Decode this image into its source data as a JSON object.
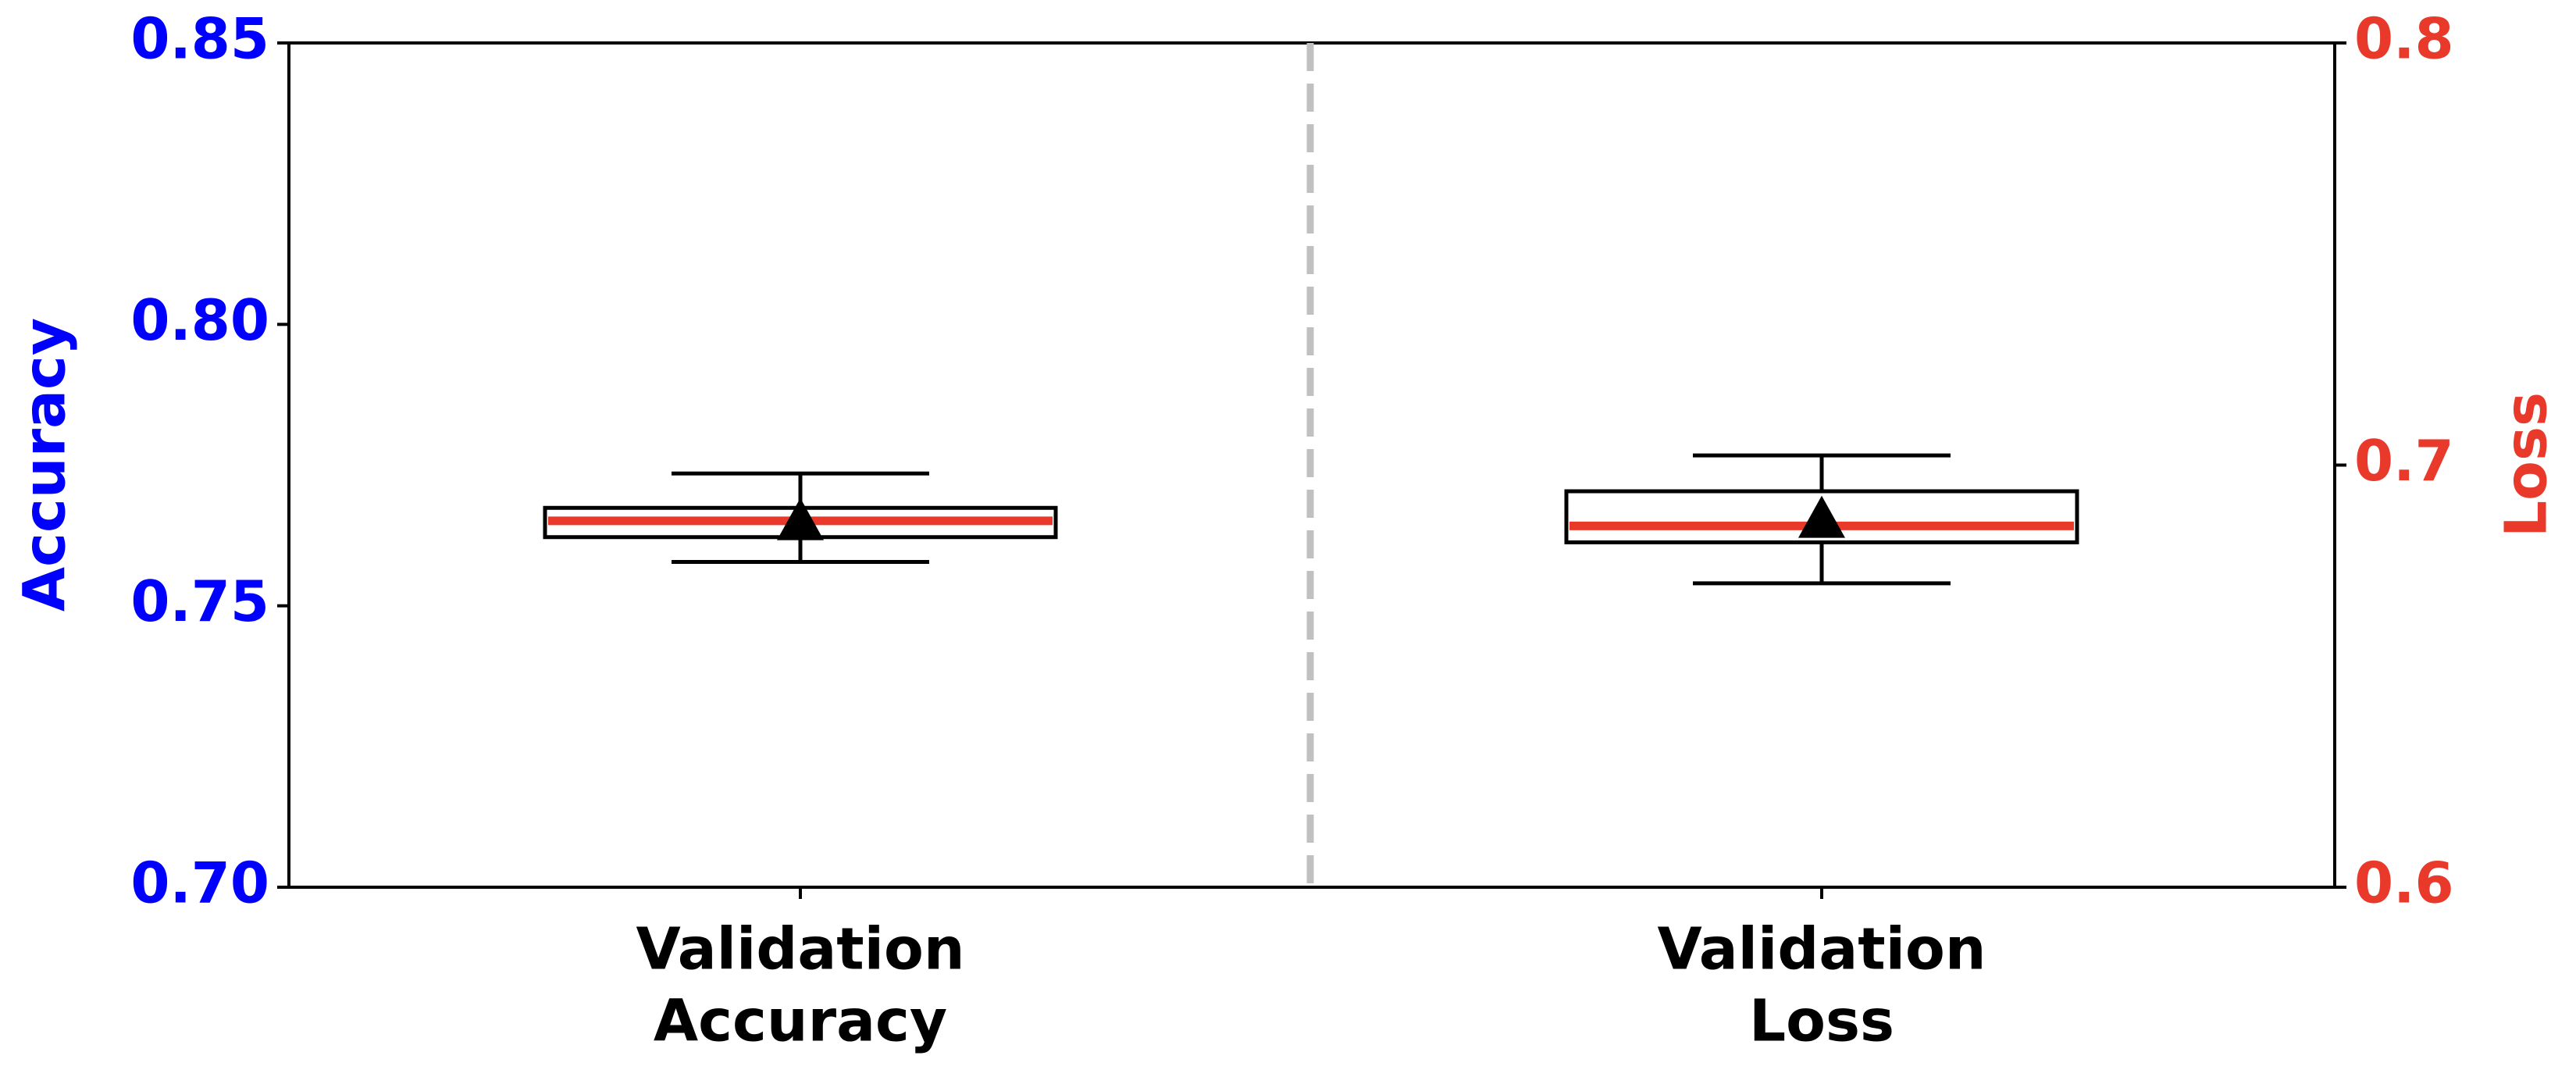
{
  "chart_data": {
    "type": "box",
    "categories": [
      [
        "Validation",
        "Accuracy"
      ],
      [
        "Validation",
        "Loss"
      ]
    ],
    "y_label": "Accuracy",
    "y2_label": "Loss",
    "y_color": "#0000ff",
    "y2_color": "#e8392a",
    "median_color": "#e8392a",
    "box_color": "#000000",
    "mean_color": "#000000",
    "ylim": [
      0.7,
      0.85
    ],
    "yticks": [
      {
        "value": 0.7,
        "label": "0.70"
      },
      0.75,
      {
        "value": 0.8,
        "label": "0.80"
      },
      0.85
    ],
    "y2lim": [
      0.6,
      0.8
    ],
    "y2ticks": [
      0.6,
      0.7,
      0.8
    ],
    "series": [
      {
        "whislo": 0.7578,
        "q1": 0.7622,
        "med": 0.7651,
        "q3": 0.7674,
        "whishi": 0.7735,
        "mean": 0.765
      },
      {
        "whislo": 0.672,
        "q1": 0.6817,
        "med": 0.6856,
        "q3": 0.6938,
        "whishi": 0.7023,
        "mean": 0.6872,
        "axis": "y2"
      }
    ]
  }
}
